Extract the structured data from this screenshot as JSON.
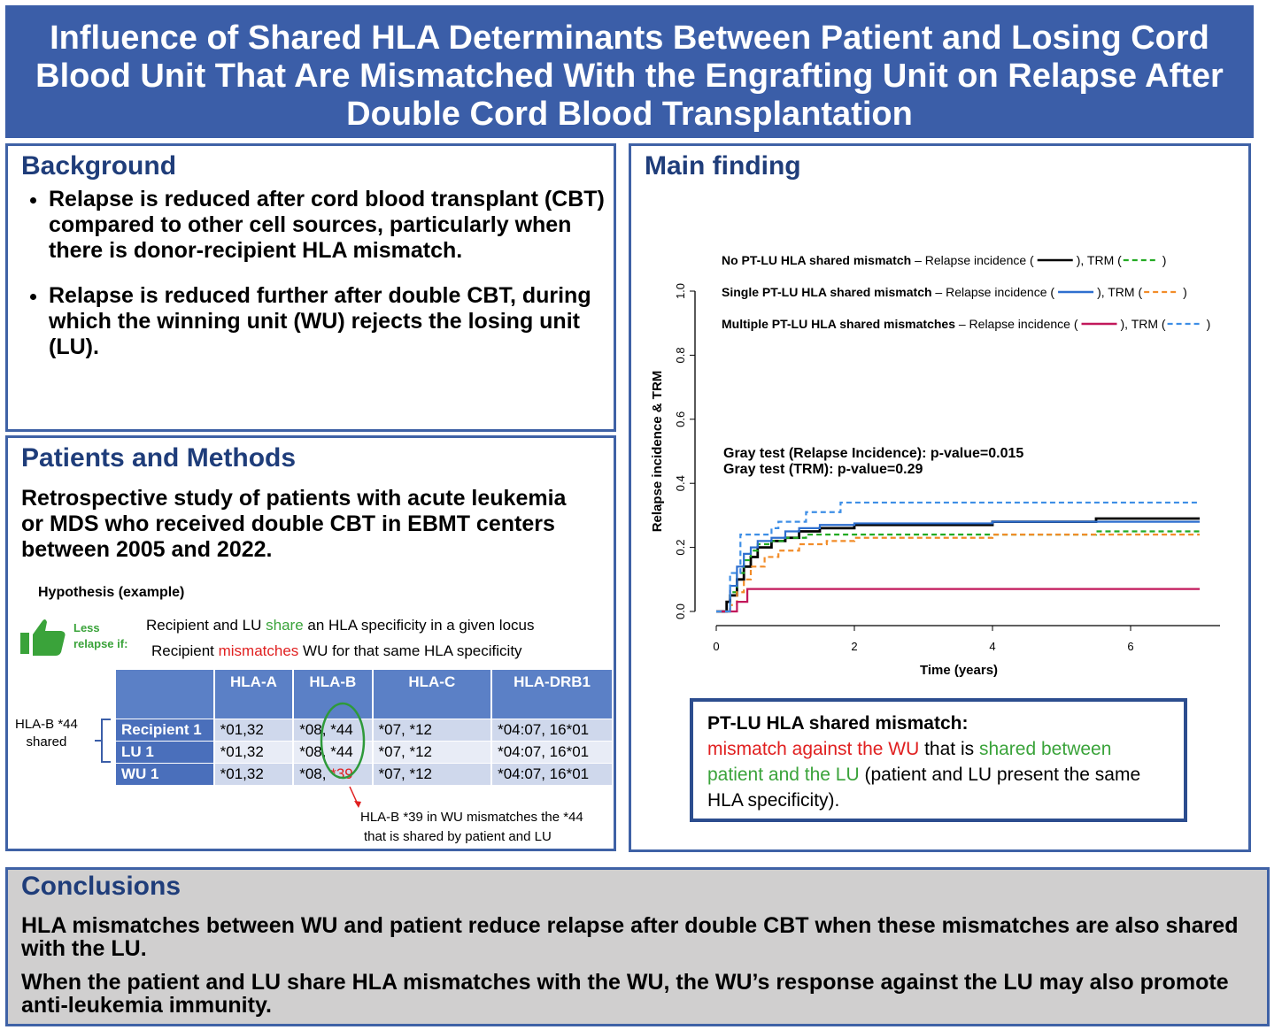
{
  "title": "Influence of Shared HLA Determinants Between Patient and Losing Cord Blood Unit That Are Mismatched With the Engrafting Unit on Relapse After Double Cord Blood Transplantation",
  "background": {
    "heading": "Background",
    "bullets": [
      "Relapse is reduced after cord blood transplant (CBT) compared to other cell sources, particularly when there is donor-recipient HLA mismatch.",
      "Relapse is reduced further after double CBT, during which the winning unit (WU) rejects the losing unit (LU)."
    ]
  },
  "methods": {
    "heading": "Patients and Methods",
    "text": "Retrospective study of patients with acute leukemia or MDS who received double CBT in EBMT centers between 2005 and 2022.",
    "hypothesis_title": "Hypothesis (example)",
    "less_relapse": "Less relapse if:",
    "line1": {
      "a": "Recipient and LU ",
      "b": "share",
      "c": " an HLA specificity in a given locus"
    },
    "line2": {
      "a": "Recipient ",
      "b": "mismatches",
      "c": " WU for that same HLA specificity"
    },
    "table": {
      "headers": [
        "",
        "HLA-A",
        "HLA-B",
        "HLA-C",
        "HLA-DRB1"
      ],
      "rows": [
        {
          "label": "Recipient 1",
          "a": "*01,32",
          "b1": "*08, ",
          "b2": "*44",
          "c": "*07, *12",
          "drb1": "*04:07, 16*01"
        },
        {
          "label": "LU 1",
          "a": "*01,32",
          "b1": "*08, ",
          "b2": "*44",
          "c": "*07, *12",
          "drb1": "*04:07, 16*01"
        },
        {
          "label": "WU 1",
          "a": "*01,32",
          "b1": "*08, ",
          "b2": "*39",
          "c": "*07, *12",
          "drb1": "*04:07, 16*01"
        }
      ]
    },
    "shared_note": {
      "l1": "HLA-B *44",
      "l2": "shared"
    },
    "wu_note": {
      "l1": "HLA-B *39 in WU mismatches the *44",
      "l2": "that is shared by patient and LU"
    }
  },
  "finding": {
    "heading": "Main finding",
    "definition": {
      "title": "PT-LU HLA shared mismatch:",
      "red": "mismatch against the WU",
      "mid": " that is ",
      "green": "shared between patient and the LU",
      "rest": " (patient and LU present the same HLA specificity)."
    }
  },
  "chart_data": {
    "type": "line",
    "xlabel": "Time (years)",
    "ylabel": "Relapse incidence & TRM",
    "xlim": [
      0,
      7.3
    ],
    "ylim": [
      0,
      1.0
    ],
    "xticks": [
      "0",
      "2",
      "4",
      "6"
    ],
    "yticks": [
      "0.0",
      "0.2",
      "0.4",
      "0.6",
      "0.8",
      "1.0"
    ],
    "legend": [
      {
        "group": "No PT-LU HLA shared mismatch",
        "ri_label": " – Relapse incidence (",
        "trm_label": "), TRM (",
        "end": ")"
      },
      {
        "group": "Single PT-LU HLA shared mismatch",
        "ri_label": " – Relapse incidence (",
        "trm_label": "), TRM (",
        "end": ")"
      },
      {
        "group": "Multiple PT-LU HLA shared mismatches",
        "ri_label": " – Relapse incidence (",
        "trm_label": "), TRM (",
        "end": ")"
      }
    ],
    "annotations": [
      "Gray test (Relapse Incidence): p-value=0.015",
      "Gray test (TRM): p-value=0.29"
    ],
    "series": [
      {
        "color": "#000000",
        "dash": "",
        "x": [
          0,
          0.1,
          0.15,
          0.2,
          0.3,
          0.4,
          0.5,
          0.6,
          0.8,
          1.0,
          1.2,
          1.5,
          2.0,
          3.0,
          4.0,
          5.5,
          7.0
        ],
        "y": [
          0,
          0,
          0.03,
          0.05,
          0.1,
          0.14,
          0.17,
          0.2,
          0.22,
          0.23,
          0.25,
          0.26,
          0.27,
          0.27,
          0.28,
          0.29,
          0.29
        ]
      },
      {
        "color": "#22aa22",
        "dash": "6,4",
        "x": [
          0,
          0.1,
          0.2,
          0.3,
          0.4,
          0.5,
          0.6,
          0.8,
          1.0,
          1.3,
          2.0,
          3.0,
          4.0,
          5.5,
          7.0
        ],
        "y": [
          0,
          0,
          0.06,
          0.12,
          0.16,
          0.19,
          0.21,
          0.22,
          0.23,
          0.24,
          0.24,
          0.24,
          0.24,
          0.25,
          0.25
        ]
      },
      {
        "color": "#2e6fcf",
        "dash": "",
        "x": [
          0,
          0.1,
          0.2,
          0.3,
          0.4,
          0.5,
          0.6,
          0.8,
          1.0,
          1.2,
          1.5,
          2.0,
          3.0,
          4.0,
          5.5,
          7.0
        ],
        "y": [
          0,
          0,
          0.08,
          0.14,
          0.18,
          0.2,
          0.22,
          0.23,
          0.25,
          0.26,
          0.27,
          0.275,
          0.275,
          0.28,
          0.28,
          0.28
        ]
      },
      {
        "color": "#f28c28",
        "dash": "6,4",
        "x": [
          0,
          0.1,
          0.2,
          0.3,
          0.4,
          0.5,
          0.7,
          0.9,
          1.2,
          1.6,
          2.0,
          3.0,
          4.0,
          5.5,
          7.0
        ],
        "y": [
          0,
          0,
          0.02,
          0.06,
          0.1,
          0.14,
          0.17,
          0.19,
          0.21,
          0.22,
          0.23,
          0.23,
          0.24,
          0.24,
          0.24
        ]
      },
      {
        "color": "#c2185b",
        "dash": "",
        "x": [
          0,
          0.3,
          0.3,
          0.45,
          0.45,
          7.0
        ],
        "y": [
          0,
          0,
          0.03,
          0.03,
          0.07,
          0.07
        ]
      },
      {
        "color": "#3d8ee6",
        "dash": "6,4",
        "x": [
          0,
          0.1,
          0.2,
          0.2,
          0.35,
          0.35,
          0.6,
          0.8,
          0.9,
          1.3,
          1.8,
          2.0,
          4.0,
          7.0
        ],
        "y": [
          0,
          0,
          0.07,
          0.12,
          0.2,
          0.24,
          0.24,
          0.26,
          0.28,
          0.31,
          0.34,
          0.34,
          0.34,
          0.34
        ]
      }
    ]
  },
  "conclusions": {
    "heading": "Conclusions",
    "p1": "HLA mismatches between WU and patient reduce relapse after double CBT when these mismatches are also shared with the LU.",
    "p2": "When the patient and LU share HLA mismatches with the WU, the WU’s response against the LU may also promote anti-leukemia immunity."
  }
}
